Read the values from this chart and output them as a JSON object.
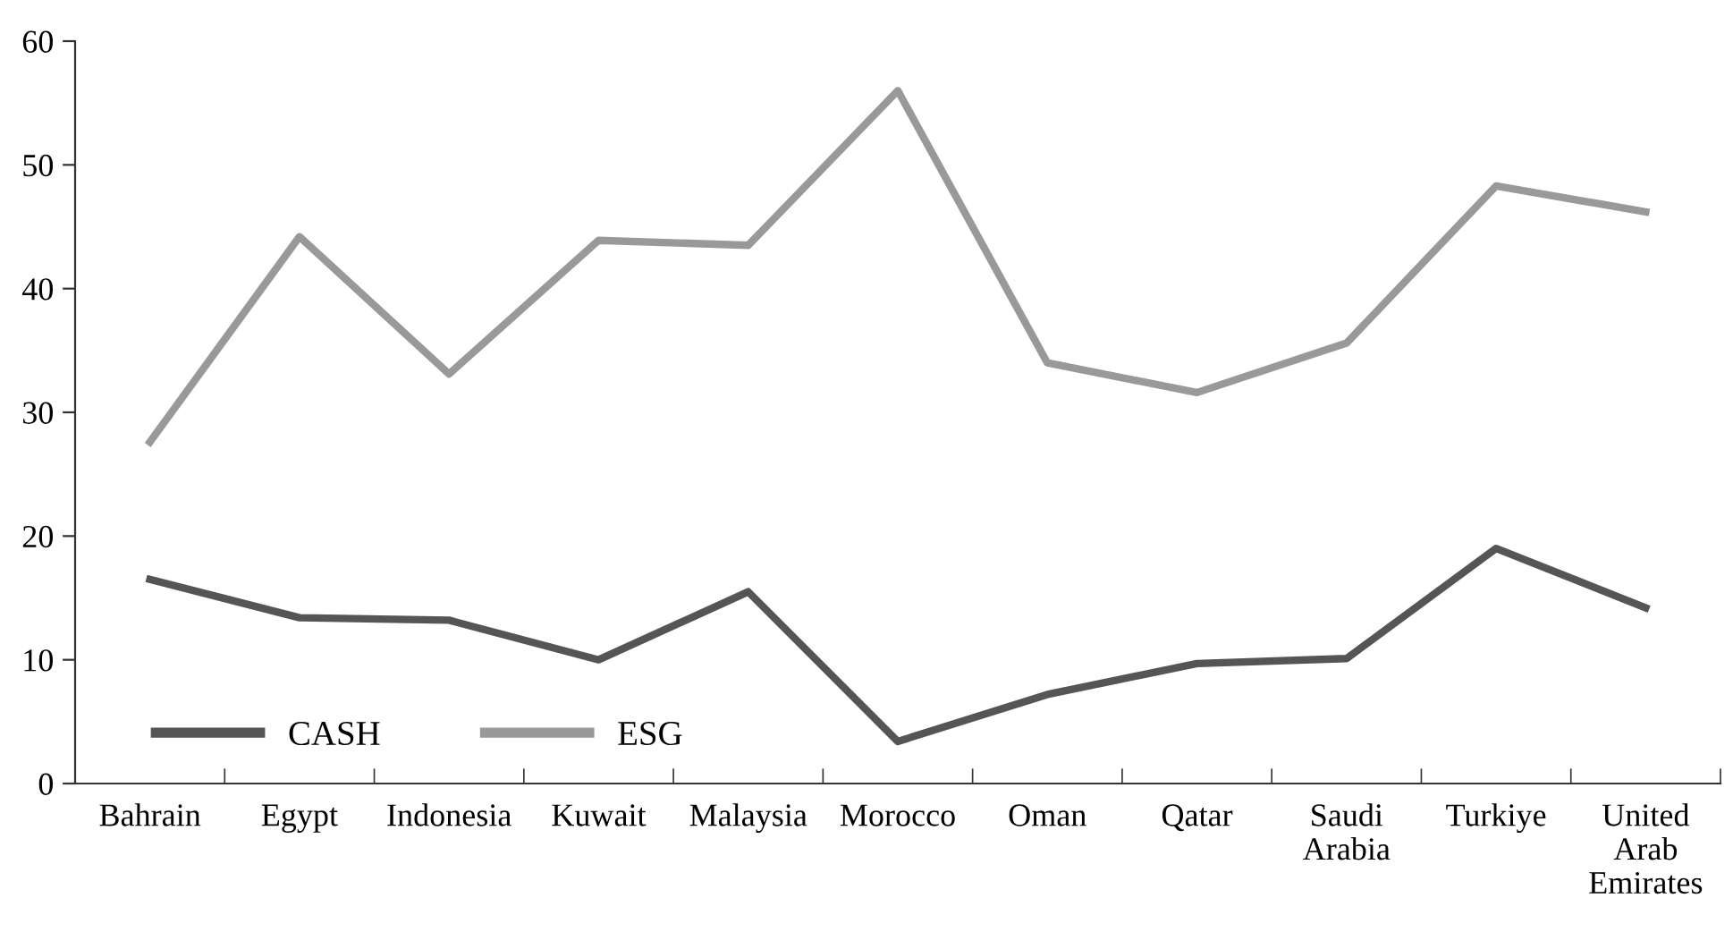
{
  "chart_data": {
    "type": "line",
    "categories": [
      "Bahrain",
      "Egypt",
      "Indonesia",
      "Kuwait",
      "Malaysia",
      "Morocco",
      "Oman",
      "Qatar",
      "Saudi\nArabia",
      "Turkiye",
      "United\nArab\nEmirates"
    ],
    "series": [
      {
        "name": "CASH",
        "color": "#555555",
        "values": [
          16.5,
          13.4,
          13.2,
          10.0,
          15.5,
          3.4,
          7.2,
          9.7,
          10.1,
          19.0,
          14.2
        ]
      },
      {
        "name": "ESG",
        "color": "#999999",
        "values": [
          27.6,
          44.2,
          33.1,
          43.9,
          43.5,
          56.0,
          34.0,
          31.6,
          35.6,
          48.3,
          46.2
        ]
      }
    ],
    "ylim": [
      0,
      60
    ],
    "yticks": [
      0,
      10,
      20,
      30,
      40,
      50,
      60
    ],
    "grid": false,
    "legend": "bottom left",
    "marker": "none",
    "line_style": "solid"
  }
}
